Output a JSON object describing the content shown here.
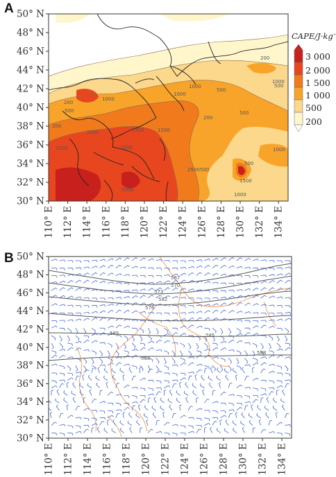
{
  "panel_a": {
    "letter": "A",
    "legend_title": "CAPE/J·kg⁻¹",
    "legend_levels": [
      "3 000",
      "2 000",
      "1 500",
      "1 000",
      "500",
      "200"
    ],
    "legend_colors": [
      "#c8201c",
      "#e8461f",
      "#f07a1c",
      "#f8a42a",
      "#fbd88c",
      "#fff6cc",
      "#ffffff"
    ],
    "contour_labels": [
      "200",
      "500",
      "1000",
      "1500",
      "2000",
      "2500",
      "5000"
    ]
  },
  "panel_b": {
    "letter": "B",
    "height_labels": [
      "567",
      "570",
      "573",
      "576",
      "582",
      "585",
      "588"
    ],
    "wind_color": "#3b64d8",
    "coast_color": "#f09850",
    "contour_color": "#555555"
  },
  "axes": {
    "lat_labels": [
      "50° N",
      "48° N",
      "46° N",
      "44° N",
      "42° N",
      "40° N",
      "38° N",
      "36° N",
      "34° N",
      "32° N",
      "30° N"
    ],
    "lon_labels": [
      "110° E",
      "112° E",
      "114° E",
      "116° E",
      "118° E",
      "120° E",
      "122° E",
      "124° E",
      "126° E",
      "128° E",
      "130° E",
      "132° E",
      "134° E"
    ]
  }
}
